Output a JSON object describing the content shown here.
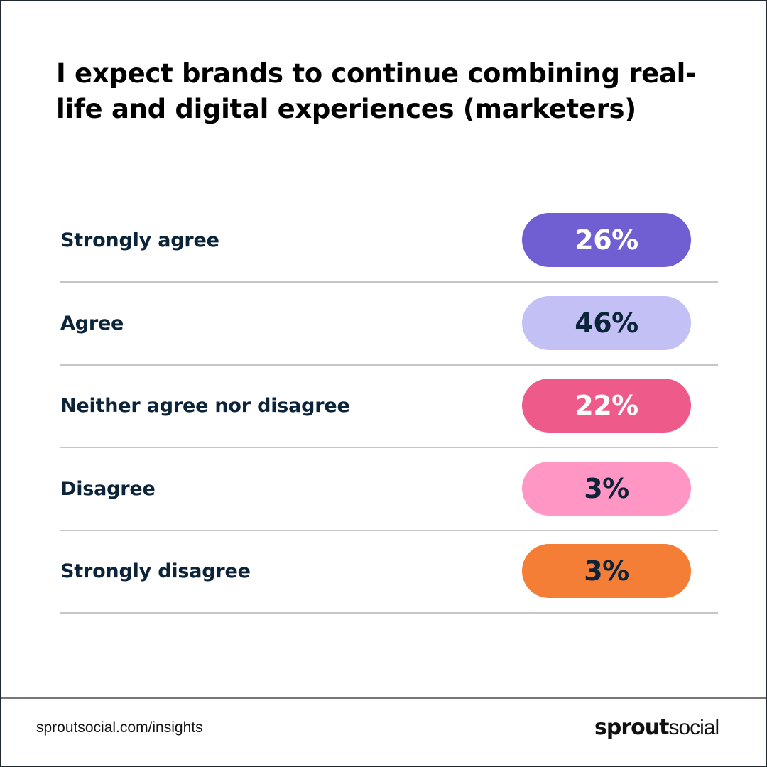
{
  "chart_data": {
    "type": "table",
    "title": "I expect brands to continue combining real-life and digital experiences (marketers)",
    "categories": [
      "Strongly agree",
      "Agree",
      "Neither agree nor disagree",
      "Disagree",
      "Strongly disagree"
    ],
    "values": [
      26,
      46,
      22,
      3,
      3
    ],
    "value_labels": [
      "26%",
      "46%",
      "22%",
      "3%",
      "3%"
    ],
    "unit": "%",
    "colors": [
      "#6f5fd2",
      "#c2c0f5",
      "#ee5a8a",
      "#ff96c3",
      "#f47e35"
    ],
    "label_colors": [
      "#ffffff",
      "#0b2439",
      "#ffffff",
      "#0b2439",
      "#0b2439"
    ]
  },
  "header": {
    "title": "I expect brands to continue combining real-life and digital experiences (marketers)"
  },
  "footer": {
    "url": "sproutsocial.com/insights",
    "logo_bold": "sprout",
    "logo_regular": "social"
  }
}
